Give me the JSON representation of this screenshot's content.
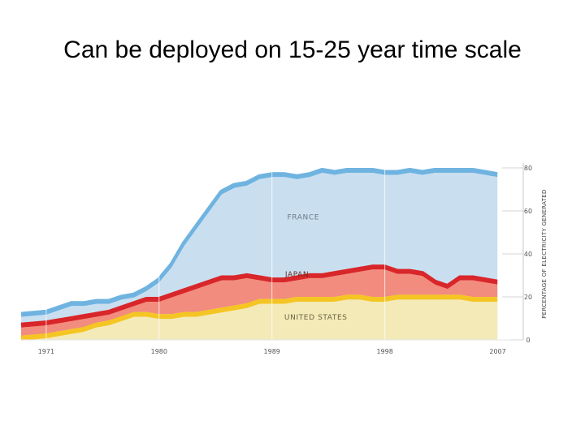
{
  "title": "Can be deployed on 15-25 year time scale",
  "colors": {
    "france_fill": "#c9dff0",
    "france_edge": "#6fb3e0",
    "france_shadow": "#b7cde0",
    "japan_fill": "#f18c7e",
    "japan_edge": "#d8262a",
    "japan_shadow": "#dcaab0",
    "us_fill": "#f3eab8",
    "us_edge": "#f5c524",
    "us_shadow": "#f0d98a",
    "label": "#555555"
  },
  "chart_data": {
    "type": "area",
    "xlabel": "",
    "ylabel": "PERCENTAGE OF ELECTRICITY GENERATED",
    "xlim": [
      1969,
      2008
    ],
    "ylim": [
      0,
      80
    ],
    "x_ticks": [
      "1971",
      "1980",
      "1989",
      "1998",
      "2007"
    ],
    "y_ticks": [
      "0",
      "20",
      "40",
      "60",
      "80"
    ],
    "legend": "inline labels",
    "grid": false,
    "series": [
      {
        "name": "FRANCE",
        "x": [
          1969,
          1971,
          1972,
          1973,
          1974,
          1975,
          1976,
          1977,
          1978,
          1979,
          1980,
          1981,
          1982,
          1983,
          1984,
          1985,
          1986,
          1987,
          1988,
          1989,
          1990,
          1991,
          1992,
          1993,
          1994,
          1995,
          1996,
          1997,
          1998,
          1999,
          2000,
          2001,
          2002,
          2003,
          2004,
          2005,
          2006,
          2007
        ],
        "y": [
          13,
          14,
          16,
          18,
          18,
          19,
          19,
          21,
          22,
          25,
          29,
          36,
          46,
          54,
          62,
          70,
          73,
          74,
          77,
          78,
          78,
          77,
          78,
          80,
          79,
          80,
          80,
          80,
          79,
          79,
          80,
          79,
          80,
          80,
          80,
          80,
          79,
          78
        ]
      },
      {
        "name": "JAPAN",
        "x": [
          1969,
          1971,
          1972,
          1973,
          1974,
          1975,
          1976,
          1977,
          1978,
          1979,
          1980,
          1981,
          1982,
          1983,
          1984,
          1985,
          1986,
          1987,
          1988,
          1989,
          1990,
          1991,
          1992,
          1993,
          1994,
          1995,
          1996,
          1997,
          1998,
          1999,
          2000,
          2001,
          2002,
          2003,
          2004,
          2005,
          2006,
          2007
        ],
        "y": [
          8,
          9,
          10,
          11,
          12,
          13,
          14,
          16,
          18,
          20,
          20,
          22,
          24,
          26,
          28,
          30,
          30,
          31,
          30,
          29,
          29,
          30,
          31,
          31,
          32,
          33,
          34,
          35,
          35,
          33,
          33,
          32,
          28,
          26,
          30,
          30,
          29,
          28
        ]
      },
      {
        "name": "UNITED STATES",
        "x": [
          1969,
          1971,
          1972,
          1973,
          1974,
          1975,
          1976,
          1977,
          1978,
          1979,
          1980,
          1981,
          1982,
          1983,
          1984,
          1985,
          1986,
          1987,
          1988,
          1989,
          1990,
          1991,
          1992,
          1993,
          1994,
          1995,
          1996,
          1997,
          1998,
          1999,
          2000,
          2001,
          2002,
          2003,
          2004,
          2005,
          2006,
          2007
        ],
        "y": [
          2,
          3,
          4,
          5,
          6,
          8,
          9,
          11,
          13,
          13,
          12,
          12,
          13,
          13,
          14,
          15,
          16,
          17,
          19,
          19,
          19,
          20,
          20,
          20,
          20,
          21,
          21,
          20,
          20,
          21,
          21,
          21,
          21,
          21,
          21,
          20,
          20,
          20
        ]
      }
    ]
  }
}
